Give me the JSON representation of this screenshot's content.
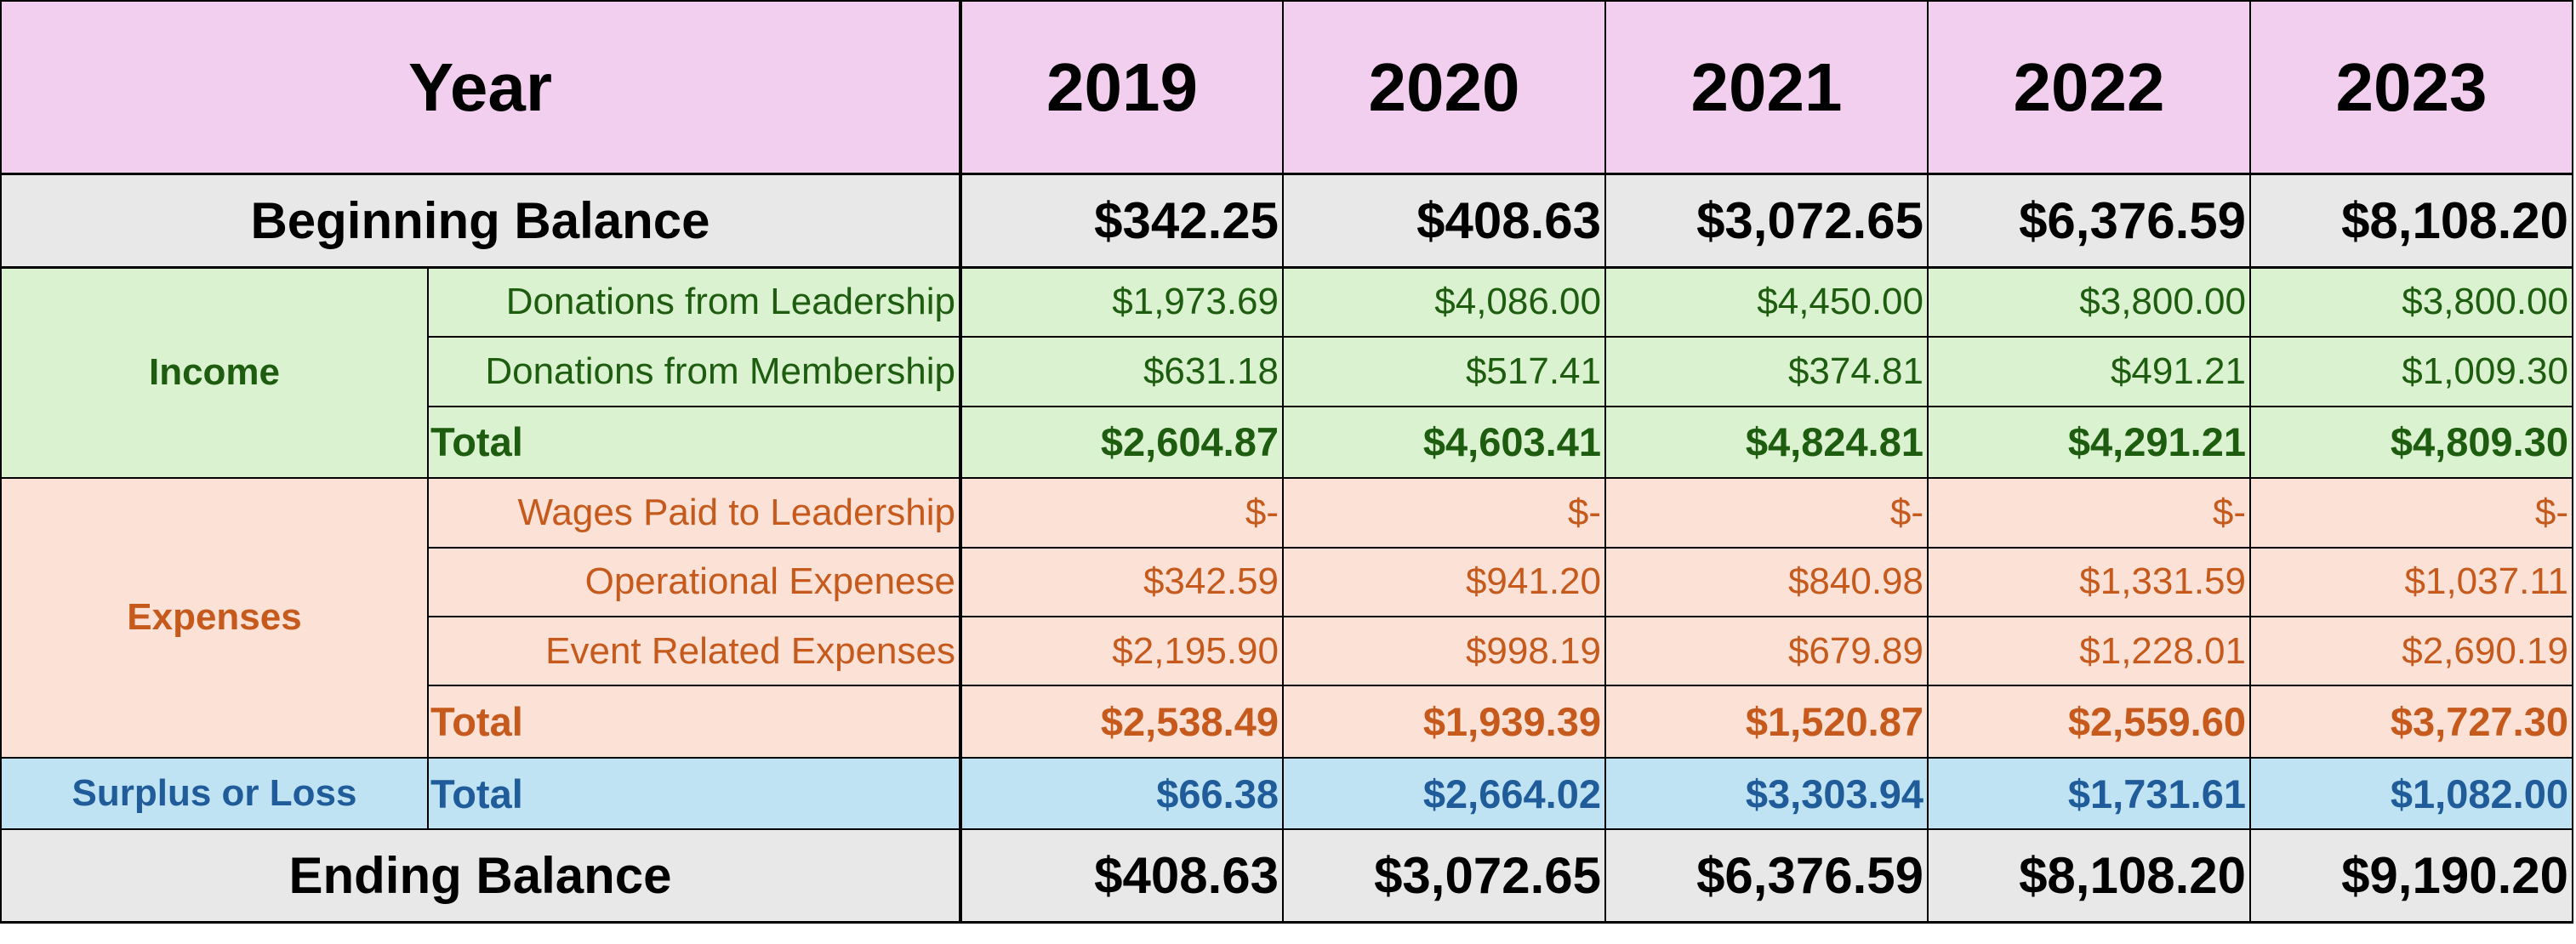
{
  "header": {
    "label": "Year",
    "years": [
      "2019",
      "2020",
      "2021",
      "2022",
      "2023"
    ]
  },
  "beginning_balance": {
    "label": "Beginning Balance",
    "values": [
      "$342.25",
      "$408.63",
      "$3,072.65",
      "$6,376.59",
      "$8,108.20"
    ]
  },
  "income": {
    "category": "Income",
    "rows": [
      {
        "label": "Donations from Leadership",
        "values": [
          "$1,973.69",
          "$4,086.00",
          "$4,450.00",
          "$3,800.00",
          "$3,800.00"
        ]
      },
      {
        "label": "Donations from Membership",
        "values": [
          "$631.18",
          "$517.41",
          "$374.81",
          "$491.21",
          "$1,009.30"
        ]
      }
    ],
    "total": {
      "label": "Total",
      "values": [
        "$2,604.87",
        "$4,603.41",
        "$4,824.81",
        "$4,291.21",
        "$4,809.30"
      ]
    }
  },
  "expenses": {
    "category": "Expenses",
    "rows": [
      {
        "label": "Wages Paid to Leadership",
        "values": [
          "$-",
          "$-",
          "$-",
          "$-",
          "$-"
        ]
      },
      {
        "label": "Operational Expenese",
        "values": [
          "$342.59",
          "$941.20",
          "$840.98",
          "$1,331.59",
          "$1,037.11"
        ]
      },
      {
        "label": "Event Related Expenses",
        "values": [
          "$2,195.90",
          "$998.19",
          "$679.89",
          "$1,228.01",
          "$2,690.19"
        ]
      }
    ],
    "total": {
      "label": "Total",
      "values": [
        "$2,538.49",
        "$1,939.39",
        "$1,520.87",
        "$2,559.60",
        "$3,727.30"
      ]
    }
  },
  "surplus": {
    "category": "Surplus or Loss",
    "total": {
      "label": "Total",
      "values": [
        "$66.38",
        "$2,664.02",
        "$3,303.94",
        "$1,731.61",
        "$1,082.00"
      ]
    }
  },
  "ending_balance": {
    "label": "Ending Balance",
    "values": [
      "$408.63",
      "$3,072.65",
      "$6,376.59",
      "$8,108.20",
      "$9,190.20"
    ]
  },
  "colors": {
    "header_bg": "#f2cfee",
    "balance_bg": "#e8e8e8",
    "income_bg": "#daf2d0",
    "income_text": "#1e5c10",
    "expense_bg": "#fbe1d6",
    "expense_text": "#c55a1c",
    "surplus_bg": "#c0e3f4",
    "surplus_text": "#1f5c99"
  }
}
